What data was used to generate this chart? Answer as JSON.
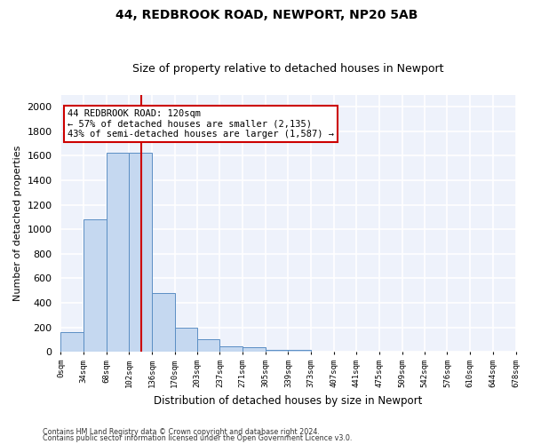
{
  "title": "44, REDBROOK ROAD, NEWPORT, NP20 5AB",
  "subtitle": "Size of property relative to detached houses in Newport",
  "xlabel": "Distribution of detached houses by size in Newport",
  "ylabel": "Number of detached properties",
  "bar_values": [
    160,
    1085,
    1625,
    1625,
    480,
    200,
    100,
    45,
    35,
    20,
    20,
    0,
    0,
    0,
    0,
    0,
    0,
    0,
    0,
    0
  ],
  "bin_edges": [
    0,
    34,
    68,
    102,
    136,
    170,
    203,
    237,
    271,
    305,
    339,
    373,
    407,
    441,
    475,
    509,
    542,
    576,
    610,
    644,
    678
  ],
  "x_labels": [
    "0sqm",
    "34sqm",
    "68sqm",
    "102sqm",
    "136sqm",
    "170sqm",
    "203sqm",
    "237sqm",
    "271sqm",
    "305sqm",
    "339sqm",
    "373sqm",
    "407sqm",
    "441sqm",
    "475sqm",
    "509sqm",
    "542sqm",
    "576sqm",
    "610sqm",
    "644sqm",
    "678sqm"
  ],
  "bar_color": "#c5d8f0",
  "bar_edge_color": "#5b8ec4",
  "red_line_x": 120,
  "ylim": [
    0,
    2100
  ],
  "yticks": [
    0,
    200,
    400,
    600,
    800,
    1000,
    1200,
    1400,
    1600,
    1800,
    2000
  ],
  "annotation_text": "44 REDBROOK ROAD: 120sqm\n← 57% of detached houses are smaller (2,135)\n43% of semi-detached houses are larger (1,587) →",
  "annotation_box_color": "#ffffff",
  "annotation_box_edge_color": "#cc0000",
  "footer_line1": "Contains HM Land Registry data © Crown copyright and database right 2024.",
  "footer_line2": "Contains public sector information licensed under the Open Government Licence v3.0.",
  "bg_color": "#eef2fb",
  "grid_color": "#ffffff",
  "fig_bg": "#ffffff",
  "title_fontsize": 10,
  "subtitle_fontsize": 9,
  "annotation_fontsize": 7.5
}
